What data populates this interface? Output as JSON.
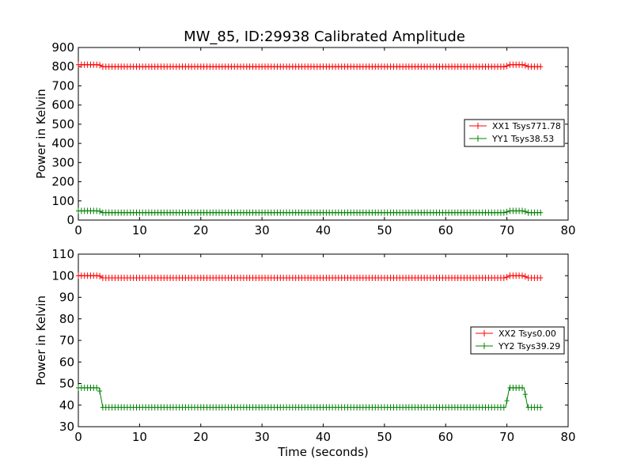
{
  "figure": {
    "title": "MW_85, ID:29938 Calibrated Amplitude"
  },
  "chart_data": [
    {
      "type": "line",
      "title": "MW_85, ID:29938 Calibrated Amplitude",
      "xlabel": "",
      "ylabel": "Power in Kelvin",
      "xlim": [
        0,
        80
      ],
      "ylim": [
        0,
        900
      ],
      "xticks": [
        "0",
        "10",
        "20",
        "30",
        "40",
        "50",
        "60",
        "70",
        "80"
      ],
      "yticks": [
        "0",
        "100",
        "200",
        "300",
        "400",
        "500",
        "600",
        "700",
        "800",
        "900"
      ],
      "grid": false,
      "legend_position": "right",
      "series": [
        {
          "name": "XX1 Tsys771.78",
          "color": "#ff0000",
          "marker": "plus",
          "x": [
            0,
            3.4,
            4.0,
            69.8,
            70.4,
            72.8,
            73.4,
            75.5
          ],
          "y": [
            810,
            810,
            800,
            800,
            810,
            810,
            800,
            800
          ]
        },
        {
          "name": "YY1 Tsys38.53",
          "color": "#008000",
          "marker": "plus",
          "x": [
            0,
            3.4,
            4.0,
            69.8,
            70.4,
            72.8,
            73.4,
            75.5
          ],
          "y": [
            48,
            48,
            39,
            39,
            48,
            48,
            39,
            39
          ]
        }
      ]
    },
    {
      "type": "line",
      "title": "",
      "xlabel": "Time (seconds)",
      "ylabel": "Power in Kelvin",
      "xlim": [
        0,
        80
      ],
      "ylim": [
        30,
        110
      ],
      "xticks": [
        "0",
        "10",
        "20",
        "30",
        "40",
        "50",
        "60",
        "70",
        "80"
      ],
      "yticks": [
        "30",
        "40",
        "50",
        "60",
        "70",
        "80",
        "90",
        "100",
        "110"
      ],
      "grid": false,
      "legend_position": "right",
      "series": [
        {
          "name": "XX2 Tsys0.00",
          "color": "#ff0000",
          "marker": "plus",
          "x": [
            0,
            3.4,
            4.0,
            69.8,
            70.4,
            72.8,
            73.4,
            75.5
          ],
          "y": [
            100,
            100,
            99,
            99,
            100,
            100,
            99,
            99
          ]
        },
        {
          "name": "YY2 Tsys39.29",
          "color": "#008000",
          "marker": "plus",
          "x": [
            0,
            3.4,
            4.0,
            69.8,
            70.4,
            72.8,
            73.4,
            75.5
          ],
          "y": [
            48,
            48,
            39,
            39,
            48,
            48,
            39,
            39
          ]
        }
      ]
    }
  ]
}
